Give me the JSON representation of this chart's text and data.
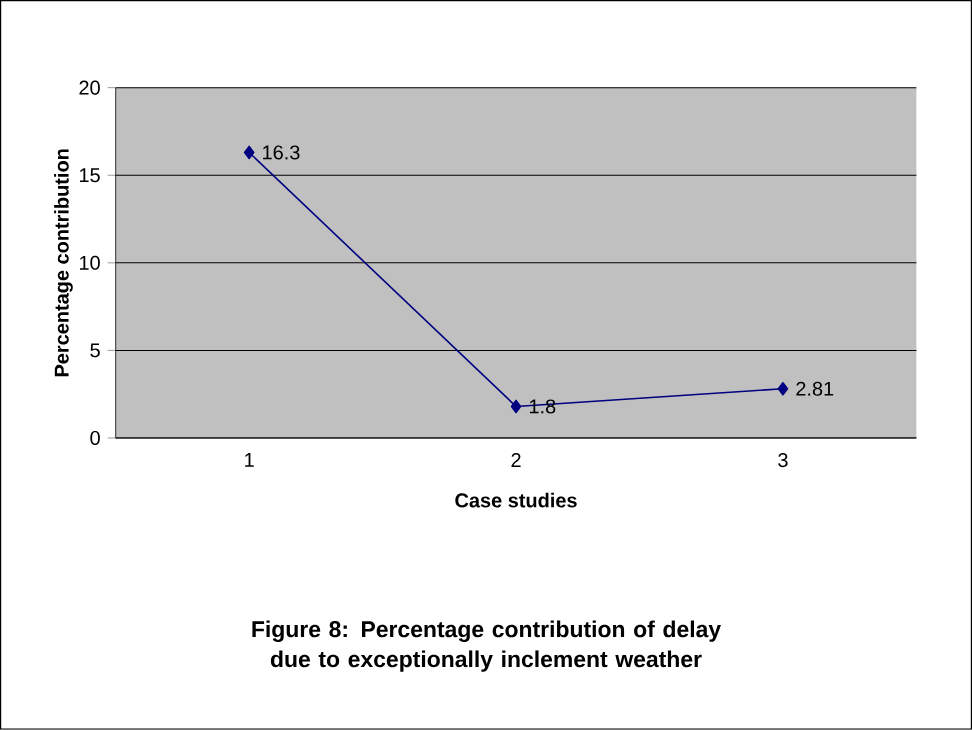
{
  "chart_data": {
    "type": "line",
    "title": "Figure 8: Percentage contribution of delay due to exceptionally inclement weather",
    "xlabel": "Case studies",
    "ylabel": "Percentage contribution",
    "categories": [
      "1",
      "2",
      "3"
    ],
    "series": [
      {
        "color": "#000080",
        "values": [
          16.3,
          1.8,
          2.81
        ]
      }
    ],
    "ylim": [
      0,
      20
    ],
    "yticks": [
      0,
      5,
      10,
      15,
      20
    ],
    "grid": "y",
    "marker": "diamond",
    "line_style": "solid",
    "data_labels": true
  }
}
